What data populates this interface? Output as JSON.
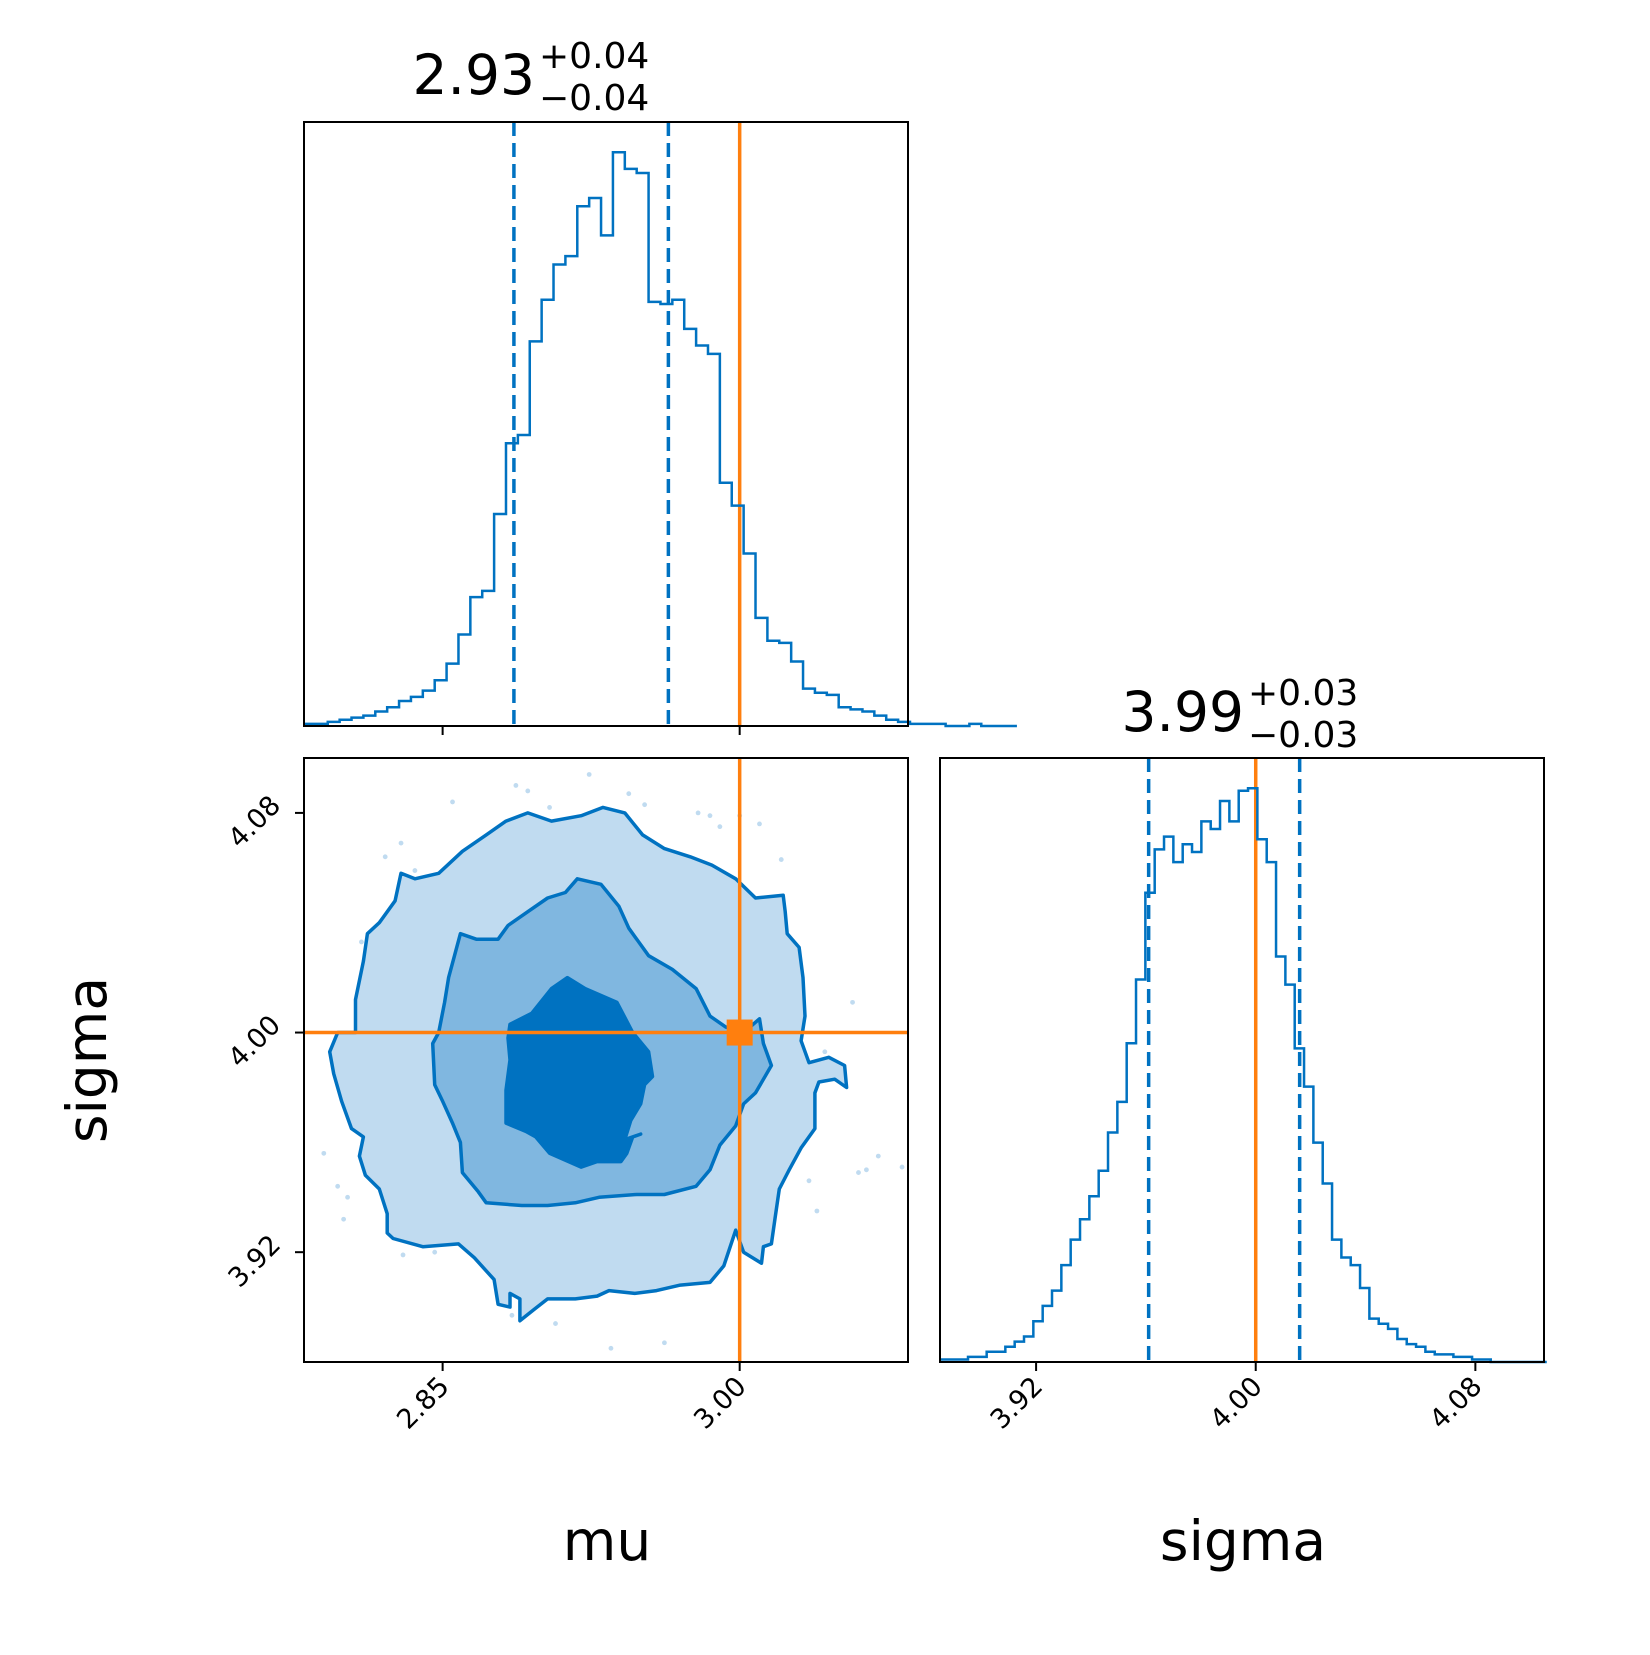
{
  "colors": {
    "primary": "#0072c1",
    "truth": "#ff7f0e",
    "level1": "#c0dbf0",
    "level2": "#80b7e0",
    "level3": "#0072c1"
  },
  "chart_data": {
    "type": "corner",
    "parameters": [
      "mu",
      "sigma"
    ],
    "truths": {
      "mu": 3.0,
      "sigma": 4.0
    },
    "panels": [
      {
        "id": "mu-hist",
        "type": "histogram",
        "parameter": "mu",
        "xlim": [
          2.78,
          3.085
        ],
        "x_ticks": [
          2.85,
          3.0
        ],
        "title": {
          "median": "2.93",
          "plus": "+0.04",
          "minus": "−0.04"
        },
        "quantile_lines": [
          2.886,
          2.964
        ],
        "truth_line": 3.0,
        "bins": {
          "start": 2.78,
          "width": 0.006,
          "counts": [
            1,
            1,
            2,
            3,
            4,
            5,
            7,
            9,
            12,
            14,
            17,
            22,
            30,
            44,
            62,
            65,
            102,
            136,
            140,
            185,
            205,
            222,
            226,
            250,
            254,
            236,
            276,
            268,
            266,
            204,
            203,
            205,
            191,
            183,
            179,
            117,
            106,
            83,
            52,
            41,
            40,
            31,
            18,
            16,
            15,
            9,
            8,
            7,
            5,
            3,
            2,
            1,
            1,
            1,
            0,
            0,
            1,
            0,
            0,
            0
          ]
        }
      },
      {
        "id": "sigma-hist",
        "type": "histogram",
        "parameter": "sigma",
        "xlim": [
          3.885,
          4.105
        ],
        "x_ticks": [
          3.92,
          4.0,
          4.08
        ],
        "x_tick_labels": [
          "3.92",
          "4.00",
          "4.08"
        ],
        "xlabel": "sigma",
        "title": {
          "median": "3.99",
          "plus": "+0.03",
          "minus": "−0.03"
        },
        "quantile_lines": [
          3.961,
          4.016
        ],
        "truth_line": 4.0,
        "bins": {
          "start": 3.885,
          "width": 0.0034,
          "counts": [
            1,
            1,
            1,
            2,
            2,
            4,
            4,
            6,
            8,
            10,
            16,
            22,
            28,
            38,
            48,
            56,
            65,
            75,
            90,
            102,
            125,
            150,
            184,
            201,
            206,
            196,
            203,
            200,
            212,
            209,
            220,
            212,
            224,
            225,
            205,
            196,
            159,
            148,
            123,
            108,
            86,
            70,
            48,
            41,
            38,
            29,
            17,
            15,
            13,
            9,
            7,
            6,
            4,
            3,
            3,
            2,
            2,
            1,
            1,
            0,
            0,
            0,
            0,
            0,
            0
          ]
        }
      },
      {
        "id": "mu-sigma-2d",
        "type": "contour",
        "x_parameter": "mu",
        "y_parameter": "sigma",
        "xlim": [
          2.78,
          3.085
        ],
        "ylim": [
          3.88,
          4.1
        ],
        "x_ticks": [
          2.85,
          3.0
        ],
        "x_tick_labels": [
          "2.85",
          "3.00"
        ],
        "y_ticks": [
          3.92,
          4.0,
          4.08
        ],
        "y_tick_labels": [
          "3.92",
          "4.00",
          "4.08"
        ],
        "xlabel": "mu",
        "ylabel": "sigma",
        "truth_point": [
          3.0,
          4.0
        ],
        "levels": [
          {
            "name": "outer",
            "points": [
              [
                2.806,
                4.0
              ],
              [
                2.806,
                4.012
              ],
              [
                2.81,
                4.026
              ],
              [
                2.812,
                4.036
              ],
              [
                2.818,
                4.04
              ],
              [
                2.826,
                4.048
              ],
              [
                2.829,
                4.058
              ],
              [
                2.836,
                4.056
              ],
              [
                2.848,
                4.058
              ],
              [
                2.86,
                4.066
              ],
              [
                2.872,
                4.072
              ],
              [
                2.882,
                4.077
              ],
              [
                2.893,
                4.08
              ],
              [
                2.905,
                4.077
              ],
              [
                2.92,
                4.079
              ],
              [
                2.931,
                4.082
              ],
              [
                2.942,
                4.08
              ],
              [
                2.951,
                4.072
              ],
              [
                2.962,
                4.067
              ],
              [
                2.975,
                4.064
              ],
              [
                2.986,
                4.061
              ],
              [
                2.998,
                4.056
              ],
              [
                3.008,
                4.049
              ],
              [
                3.022,
                4.05
              ],
              [
                3.023,
                4.044
              ],
              [
                3.024,
                4.036
              ],
              [
                3.03,
                4.031
              ],
              [
                3.032,
                4.02
              ],
              [
                3.033,
                4.006
              ],
              [
                3.031,
                3.997
              ],
              [
                3.035,
                3.989
              ],
              [
                3.045,
                3.991
              ],
              [
                3.053,
                3.988
              ],
              [
                3.054,
                3.98
              ],
              [
                3.048,
                3.983
              ],
              [
                3.04,
                3.982
              ],
              [
                3.038,
                3.978
              ],
              [
                3.038,
                3.965
              ],
              [
                3.031,
                3.958
              ],
              [
                3.025,
                3.95
              ],
              [
                3.02,
                3.943
              ],
              [
                3.018,
                3.933
              ],
              [
                3.016,
                3.923
              ],
              [
                3.012,
                3.922
              ],
              [
                3.011,
                3.916
              ],
              [
                3.002,
                3.92
              ],
              [
                2.998,
                3.928
              ],
              [
                2.992,
                3.915
              ],
              [
                2.985,
                3.909
              ],
              [
                2.97,
                3.908
              ],
              [
                2.958,
                3.906
              ],
              [
                2.947,
                3.905
              ],
              [
                2.934,
                3.906
              ],
              [
                2.928,
                3.904
              ],
              [
                2.917,
                3.903
              ],
              [
                2.903,
                3.903
              ],
              [
                2.896,
                3.899
              ],
              [
                2.889,
                3.895
              ],
              [
                2.889,
                3.903
              ],
              [
                2.884,
                3.905
              ],
              [
                2.884,
                3.9
              ],
              [
                2.878,
                3.901
              ],
              [
                2.876,
                3.91
              ],
              [
                2.866,
                3.918
              ],
              [
                2.858,
                3.923
              ],
              [
                2.84,
                3.922
              ],
              [
                2.825,
                3.925
              ],
              [
                2.822,
                3.927
              ],
              [
                2.822,
                3.934
              ],
              [
                2.818,
                3.943
              ],
              [
                2.811,
                3.948
              ],
              [
                2.808,
                3.955
              ],
              [
                2.81,
                3.962
              ],
              [
                2.804,
                3.965
              ],
              [
                2.799,
                3.975
              ],
              [
                2.795,
                3.985
              ],
              [
                2.793,
                3.993
              ],
              [
                2.797,
                4.0
              ],
              [
                2.806,
                4.0
              ]
            ]
          },
          {
            "name": "middle",
            "points": [
              [
                2.845,
                3.996
              ],
              [
                2.848,
                4.0
              ],
              [
                2.851,
                4.011
              ],
              [
                2.853,
                4.02
              ],
              [
                2.856,
                4.028
              ],
              [
                2.859,
                4.036
              ],
              [
                2.867,
                4.034
              ],
              [
                2.878,
                4.034
              ],
              [
                2.883,
                4.039
              ],
              [
                2.893,
                4.044
              ],
              [
                2.903,
                4.049
              ],
              [
                2.912,
                4.051
              ],
              [
                2.918,
                4.056
              ],
              [
                2.93,
                4.054
              ],
              [
                2.939,
                4.046
              ],
              [
                2.944,
                4.038
              ],
              [
                2.954,
                4.028
              ],
              [
                2.966,
                4.023
              ],
              [
                2.978,
                4.016
              ],
              [
                2.985,
                4.006
              ],
              [
                2.993,
                4.002
              ],
              [
                3.002,
                4.0
              ],
              [
                3.01,
                4.005
              ],
              [
                3.012,
                3.996
              ],
              [
                3.016,
                3.988
              ],
              [
                3.008,
                3.978
              ],
              [
                3.002,
                3.974
              ],
              [
                2.998,
                3.966
              ],
              [
                2.99,
                3.959
              ],
              [
                2.985,
                3.95
              ],
              [
                2.978,
                3.944
              ],
              [
                2.962,
                3.941
              ],
              [
                2.948,
                3.941
              ],
              [
                2.929,
                3.94
              ],
              [
                2.917,
                3.938
              ],
              [
                2.903,
                3.937
              ],
              [
                2.89,
                3.937
              ],
              [
                2.872,
                3.938
              ],
              [
                2.868,
                3.942
              ],
              [
                2.86,
                3.949
              ],
              [
                2.859,
                3.96
              ],
              [
                2.855,
                3.967
              ],
              [
                2.85,
                3.975
              ],
              [
                2.846,
                3.981
              ],
              [
                2.845,
                3.996
              ]
            ]
          },
          {
            "name": "inner",
            "points": [
              [
                2.883,
                3.998
              ],
              [
                2.884,
                4.003
              ],
              [
                2.895,
                4.007
              ],
              [
                2.905,
                4.016
              ],
              [
                2.913,
                4.02
              ],
              [
                2.922,
                4.016
              ],
              [
                2.938,
                4.011
              ],
              [
                2.946,
                4.0
              ],
              [
                2.954,
                3.993
              ],
              [
                2.956,
                3.984
              ],
              [
                2.952,
                3.981
              ],
              [
                2.95,
                3.974
              ],
              [
                2.945,
                3.968
              ],
              [
                2.942,
                3.961
              ],
              [
                2.95,
                3.963
              ],
              [
                2.946,
                3.962
              ],
              [
                2.943,
                3.956
              ],
              [
                2.94,
                3.953
              ],
              [
                2.928,
                3.953
              ],
              [
                2.92,
                3.951
              ],
              [
                2.904,
                3.956
              ],
              [
                2.897,
                3.962
              ],
              [
                2.892,
                3.964
              ],
              [
                2.882,
                3.967
              ],
              [
                2.882,
                3.979
              ],
              [
                2.884,
                3.99
              ],
              [
                2.883,
                3.998
              ]
            ]
          }
        ],
        "scatter": [
          [
            2.79,
            3.956
          ],
          [
            2.797,
            3.944
          ],
          [
            2.8,
            3.932
          ],
          [
            2.802,
            3.94
          ],
          [
            2.809,
            4.033
          ],
          [
            2.821,
            4.064
          ],
          [
            2.829,
            4.069
          ],
          [
            2.83,
            3.919
          ],
          [
            2.832,
            4.015
          ],
          [
            2.836,
            4.059
          ],
          [
            2.842,
            3.937
          ],
          [
            2.846,
            3.92
          ],
          [
            2.849,
            4.05
          ],
          [
            2.855,
            4.084
          ],
          [
            2.867,
            3.92
          ],
          [
            2.876,
            3.914
          ],
          [
            2.885,
            3.897
          ],
          [
            2.887,
            4.09
          ],
          [
            2.893,
            4.088
          ],
          [
            2.902,
            4.072
          ],
          [
            2.904,
            4.082
          ],
          [
            2.907,
            3.894
          ],
          [
            2.924,
            4.094
          ],
          [
            2.935,
            3.885
          ],
          [
            2.944,
            4.087
          ],
          [
            2.952,
            4.083
          ],
          [
            2.962,
            3.887
          ],
          [
            2.979,
            4.08
          ],
          [
            2.985,
            4.079
          ],
          [
            2.99,
            4.075
          ],
          [
            3.0,
            4.079
          ],
          [
            3.01,
            4.076
          ],
          [
            3.021,
            4.063
          ],
          [
            3.027,
            4.026
          ],
          [
            3.035,
            3.946
          ],
          [
            3.039,
            3.935
          ],
          [
            3.043,
            3.993
          ],
          [
            3.052,
            3.983
          ],
          [
            3.057,
            4.011
          ],
          [
            3.06,
            3.949
          ],
          [
            3.064,
            3.95
          ],
          [
            3.07,
            3.955
          ],
          [
            3.082,
            3.951
          ]
        ]
      }
    ]
  }
}
